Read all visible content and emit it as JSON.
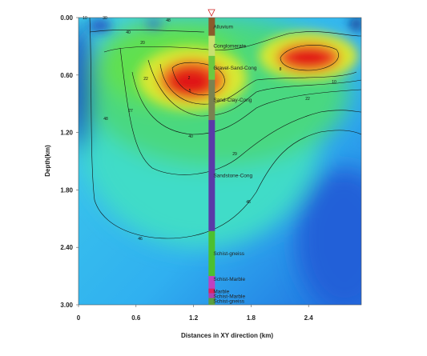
{
  "chart_data": {
    "type": "contour",
    "xlabel": "Distances in XY direction (km)",
    "ylabel": "Depth(km)",
    "xlim": [
      0,
      2.95
    ],
    "ylim": [
      0,
      3
    ],
    "y_inverted": true,
    "xticks": [
      0,
      0.6,
      1.2,
      1.8,
      2.4
    ],
    "yticks": [
      {
        "value": 0,
        "label": "0.00"
      },
      {
        "value": 0.6,
        "label": "0.60"
      },
      {
        "value": 1.2,
        "label": "1.20"
      },
      {
        "value": 1.8,
        "label": "1.80"
      },
      {
        "value": 2.4,
        "label": "2.40"
      },
      {
        "value": 3,
        "label": "3.00"
      }
    ],
    "contour_labels": [
      10,
      30,
      40,
      20,
      22,
      27,
      5,
      2,
      8,
      10,
      22,
      48,
      40,
      29,
      45,
      46,
      48
    ],
    "borehole": {
      "x": 1.39,
      "units": [
        {
          "name": "Alluvium",
          "top": 0,
          "bottom": 0.19,
          "color": "#8b5a2b"
        },
        {
          "name": "Conglomerate",
          "top": 0.19,
          "bottom": 0.4,
          "color": "#c8e070"
        },
        {
          "name": "Gravel-Sand-Cong",
          "top": 0.4,
          "bottom": 0.65,
          "color": "#6cc840"
        },
        {
          "name": "Sand-Clay-Cong",
          "top": 0.65,
          "bottom": 1.07,
          "color": "#7a8250"
        },
        {
          "name": "Sandstone-Cong",
          "top": 1.07,
          "bottom": 2.23,
          "color": "#5a3aa8"
        },
        {
          "name": "Schist-gneiss",
          "top": 2.23,
          "bottom": 2.7,
          "color": "#4cc030"
        },
        {
          "name": "Schist-Marble",
          "top": 2.7,
          "bottom": 2.83,
          "color": "#c040c0"
        },
        {
          "name": "Marble",
          "top": 2.83,
          "bottom": 2.88,
          "color": "#e02060"
        },
        {
          "name": "Schist-Marble",
          "top": 2.88,
          "bottom": 2.93,
          "color": "#b040b0"
        },
        {
          "name": "Schist-gneiss",
          "top": 2.93,
          "bottom": 3,
          "color": "#5aa040"
        }
      ]
    }
  }
}
